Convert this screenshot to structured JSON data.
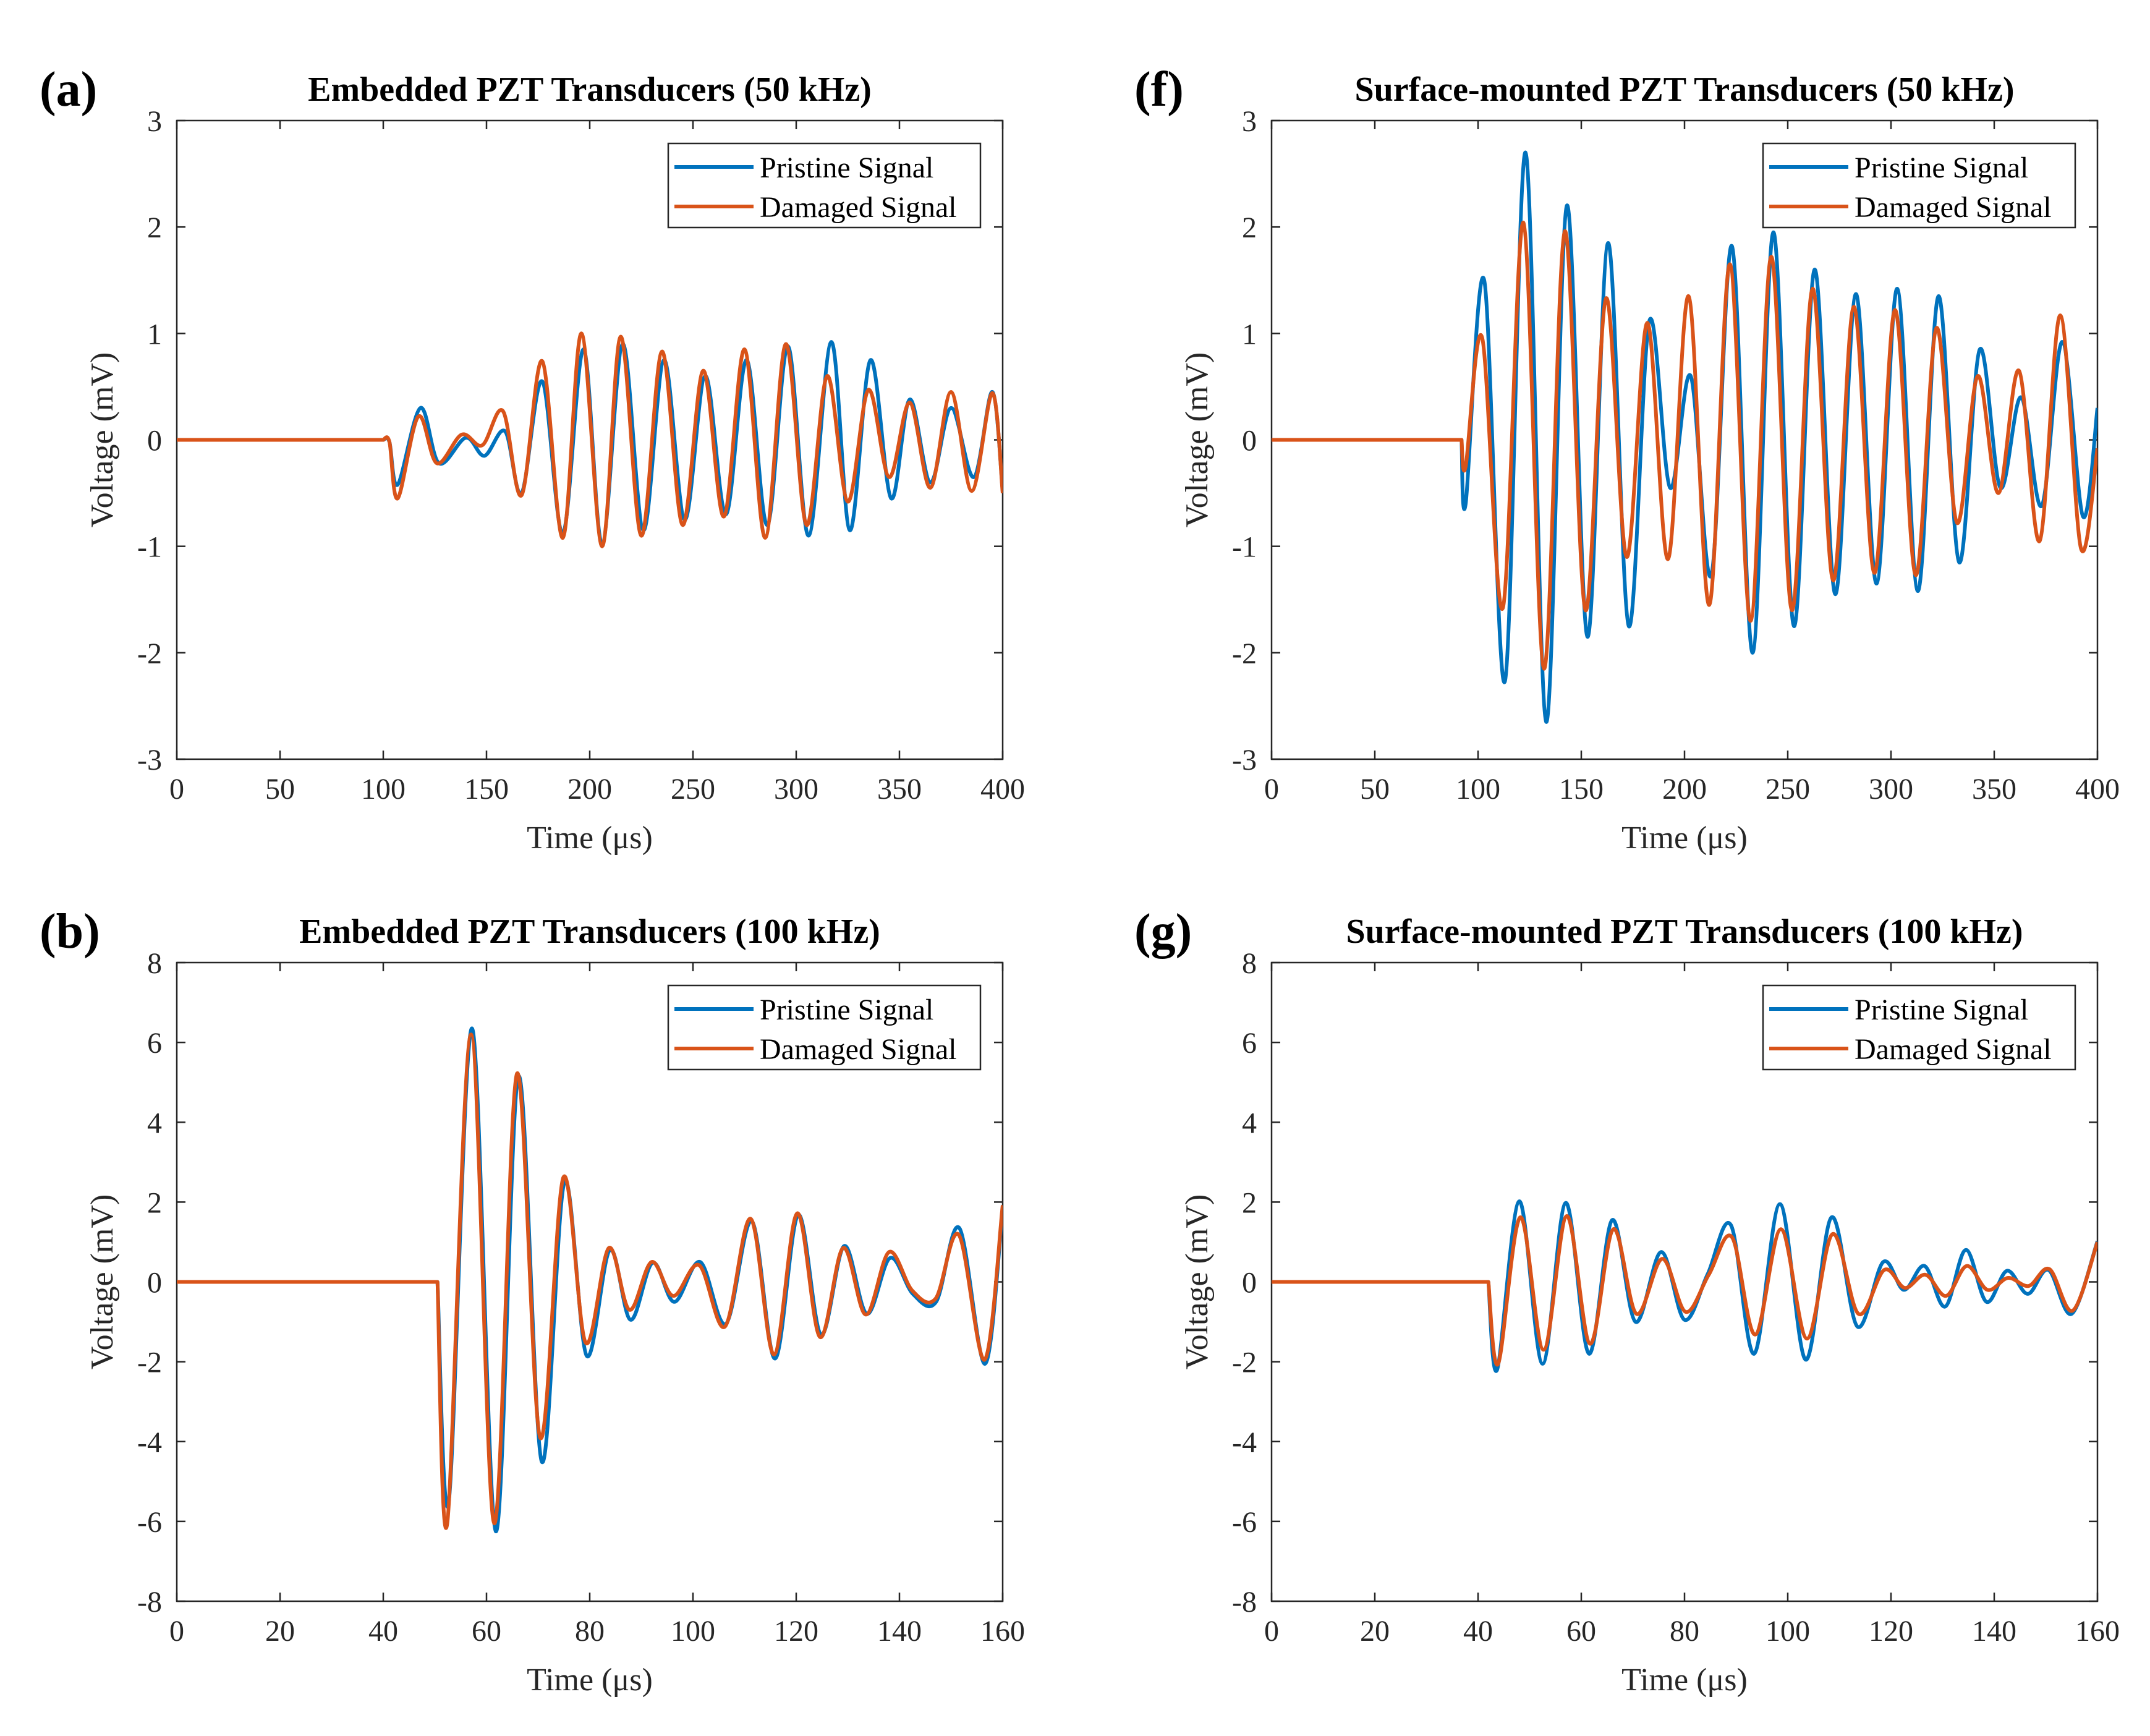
{
  "colors": {
    "pristine": "#0072bd",
    "damaged": "#d95319"
  },
  "chart_data": [
    {
      "type": "line",
      "panel_label": "a",
      "title": "Embedded PZT Transducers (50 kHz)",
      "xlabel": "Time (μs)",
      "ylabel": "Voltage (mV)",
      "xlim": [
        0,
        400
      ],
      "ylim": [
        -3,
        3
      ],
      "xticks": [
        0,
        50,
        100,
        150,
        200,
        250,
        300,
        350,
        400
      ],
      "yticks": [
        -3,
        -2,
        -1,
        0,
        1,
        2,
        3
      ],
      "legend": "top-right",
      "series": [
        {
          "name": "Pristine Signal",
          "color": "#0072bd",
          "x": [
            0,
            100,
            103,
            107,
            118,
            127,
            140,
            149,
            159,
            167,
            177,
            187,
            197,
            206,
            216,
            226,
            236,
            246,
            256,
            266,
            276,
            286,
            296,
            306,
            317,
            326,
            336,
            346,
            355,
            365,
            375,
            386,
            395,
            400
          ],
          "y": [
            0,
            0,
            -0.02,
            -0.42,
            0.3,
            -0.22,
            0.02,
            -0.15,
            0.08,
            -0.5,
            0.55,
            -0.88,
            0.85,
            -0.98,
            0.9,
            -0.85,
            0.75,
            -0.75,
            0.6,
            -0.7,
            0.75,
            -0.8,
            0.88,
            -0.9,
            0.92,
            -0.85,
            0.75,
            -0.55,
            0.38,
            -0.4,
            0.3,
            -0.35,
            0.45,
            -0.48
          ]
        },
        {
          "name": "Damaged Signal",
          "color": "#d95319",
          "x": [
            0,
            100,
            103,
            107,
            117,
            126,
            138,
            148,
            158,
            167,
            177,
            187,
            196,
            206,
            215,
            225,
            235,
            245,
            255,
            265,
            275,
            285,
            295,
            305,
            315,
            325,
            335,
            345,
            355,
            365,
            375,
            385,
            395,
            400
          ],
          "y": [
            0,
            0,
            -0.02,
            -0.55,
            0.22,
            -0.22,
            0.05,
            -0.05,
            0.27,
            -0.52,
            0.74,
            -0.92,
            1.0,
            -1.0,
            0.97,
            -0.9,
            0.83,
            -0.8,
            0.65,
            -0.72,
            0.85,
            -0.92,
            0.9,
            -0.8,
            0.6,
            -0.58,
            0.47,
            -0.35,
            0.35,
            -0.45,
            0.45,
            -0.48,
            0.44,
            -0.5
          ]
        }
      ]
    },
    {
      "type": "line",
      "panel_label": "f",
      "title": "Surface-mounted PZT Transducers (50 kHz)",
      "xlabel": "Time (μs)",
      "ylabel": "Voltage (mV)",
      "xlim": [
        0,
        400
      ],
      "ylim": [
        -3,
        3
      ],
      "xticks": [
        0,
        50,
        100,
        150,
        200,
        250,
        300,
        350,
        400
      ],
      "yticks": [
        -3,
        -2,
        -1,
        0,
        1,
        2,
        3
      ],
      "legend": "top-right",
      "series": [
        {
          "name": "Pristine Signal",
          "color": "#0072bd",
          "x": [
            0,
            92,
            94,
            103,
            113,
            123,
            133,
            143,
            153,
            163,
            173,
            183,
            193,
            203,
            213,
            223,
            233,
            243,
            253,
            263,
            273,
            283,
            293,
            303,
            313,
            323,
            333,
            343,
            353,
            363,
            373,
            383,
            393,
            400
          ],
          "y": [
            0,
            0,
            -0.6,
            1.5,
            -2.27,
            2.7,
            -2.65,
            2.2,
            -1.85,
            1.85,
            -1.75,
            1.12,
            -0.45,
            0.6,
            -1.27,
            1.82,
            -2.0,
            1.95,
            -1.75,
            1.6,
            -1.45,
            1.37,
            -1.35,
            1.42,
            -1.42,
            1.35,
            -1.15,
            0.85,
            -0.45,
            0.4,
            -0.62,
            0.92,
            -0.72,
            0.3
          ]
        },
        {
          "name": "Damaged Signal",
          "color": "#d95319",
          "x": [
            0,
            92,
            94,
            102,
            112,
            122,
            132,
            142,
            152,
            162,
            172,
            182,
            192,
            202,
            212,
            222,
            232,
            242,
            252,
            262,
            272,
            282,
            292,
            302,
            312,
            322,
            332,
            342,
            352,
            362,
            372,
            382,
            392,
            400
          ],
          "y": [
            0,
            0,
            -0.25,
            0.96,
            -1.58,
            2.04,
            -2.15,
            1.96,
            -1.6,
            1.33,
            -1.1,
            1.1,
            -1.12,
            1.35,
            -1.55,
            1.65,
            -1.7,
            1.72,
            -1.6,
            1.42,
            -1.32,
            1.25,
            -1.25,
            1.22,
            -1.27,
            1.05,
            -0.78,
            0.6,
            -0.5,
            0.65,
            -0.95,
            1.17,
            -1.02,
            -0.08
          ]
        }
      ]
    },
    {
      "type": "line",
      "panel_label": "b",
      "title": "Embedded PZT Transducers (100 kHz)",
      "xlabel": "Time (μs)",
      "ylabel": "Voltage (mV)",
      "xlim": [
        0,
        160
      ],
      "ylim": [
        -8,
        8
      ],
      "xticks": [
        0,
        20,
        40,
        60,
        80,
        100,
        120,
        140,
        160
      ],
      "yticks": [
        -8,
        -6,
        -4,
        -2,
        0,
        2,
        4,
        6,
        8
      ],
      "legend": "top-right",
      "series": [
        {
          "name": "Pristine Signal",
          "color": "#0072bd",
          "x": [
            0,
            50.5,
            52.7,
            57.2,
            61.8,
            66.2,
            70.7,
            75.1,
            79.4,
            83.9,
            87.9,
            92.2,
            96.4,
            101.4,
            106.4,
            111.4,
            115.9,
            120.4,
            124.8,
            129.3,
            133.7,
            138.2,
            142.6,
            147.1,
            151.6,
            156.6,
            160
          ],
          "y": [
            0,
            0,
            -5.5,
            6.35,
            -6.25,
            5.15,
            -4.5,
            2.5,
            -1.85,
            0.8,
            -0.95,
            0.48,
            -0.5,
            0.5,
            -1.05,
            1.52,
            -1.92,
            1.68,
            -1.32,
            0.9,
            -0.8,
            0.6,
            -0.3,
            -0.5,
            1.35,
            -2.05,
            1.85
          ]
        },
        {
          "name": "Damaged Signal",
          "color": "#d95319",
          "x": [
            0,
            50.5,
            52.4,
            57.0,
            61.5,
            65.9,
            70.4,
            74.9,
            79.2,
            83.7,
            87.7,
            92.0,
            96.2,
            101.2,
            106.2,
            111.2,
            115.7,
            120.2,
            124.6,
            129.1,
            133.5,
            138.0,
            142.5,
            147.0,
            151.5,
            156.5,
            160
          ],
          "y": [
            0,
            0,
            -6.05,
            6.2,
            -6.05,
            5.22,
            -3.9,
            2.62,
            -1.52,
            0.85,
            -0.7,
            0.5,
            -0.35,
            0.42,
            -1.12,
            1.58,
            -1.82,
            1.72,
            -1.38,
            0.85,
            -0.82,
            0.75,
            -0.22,
            -0.42,
            1.18,
            -1.95,
            1.92
          ]
        }
      ]
    },
    {
      "type": "line",
      "panel_label": "g",
      "title": "Surface-mounted PZT Transducers (100 kHz)",
      "xlabel": "Time (μs)",
      "ylabel": "Voltage (mV)",
      "xlim": [
        0,
        160
      ],
      "ylim": [
        -8,
        8
      ],
      "xticks": [
        0,
        20,
        40,
        60,
        80,
        100,
        120,
        140,
        160
      ],
      "yticks": [
        -8,
        -6,
        -4,
        -2,
        0,
        2,
        4,
        6,
        8
      ],
      "legend": "top-right",
      "series": [
        {
          "name": "Pristine Signal",
          "color": "#0072bd",
          "x": [
            0,
            42,
            43.7,
            48.0,
            52.5,
            57.0,
            61.5,
            66.0,
            70.5,
            75.5,
            80.0,
            84.5,
            89.0,
            93.5,
            98.5,
            103.5,
            108.5,
            113.5,
            118.5,
            122.5,
            126.5,
            130.5,
            134.5,
            138.5,
            142.5,
            146.5,
            150.5,
            155.0,
            160
          ],
          "y": [
            0,
            0,
            -2.2,
            2.02,
            -2.05,
            1.98,
            -1.8,
            1.55,
            -1.0,
            0.75,
            -0.95,
            0.2,
            1.42,
            -1.8,
            1.95,
            -1.95,
            1.62,
            -1.12,
            0.5,
            -0.2,
            0.4,
            -0.62,
            0.8,
            -0.5,
            0.28,
            -0.3,
            0.3,
            -0.8,
            1.02
          ]
        },
        {
          "name": "Damaged Signal",
          "color": "#d95319",
          "x": [
            0,
            42,
            43.9,
            48.2,
            52.7,
            57.2,
            61.7,
            66.2,
            70.7,
            75.7,
            80.2,
            84.7,
            89.2,
            93.7,
            98.7,
            103.7,
            108.7,
            113.7,
            118.7,
            122.7,
            126.7,
            130.7,
            134.7,
            138.7,
            142.7,
            146.7,
            150.7,
            155.2,
            160
          ],
          "y": [
            0,
            0,
            -2.05,
            1.62,
            -1.7,
            1.65,
            -1.55,
            1.32,
            -0.8,
            0.58,
            -0.75,
            0.18,
            1.12,
            -1.32,
            1.32,
            -1.42,
            1.2,
            -0.8,
            0.3,
            -0.15,
            0.18,
            -0.35,
            0.4,
            -0.2,
            0.1,
            -0.1,
            0.32,
            -0.72,
            1.0
          ]
        }
      ]
    }
  ]
}
